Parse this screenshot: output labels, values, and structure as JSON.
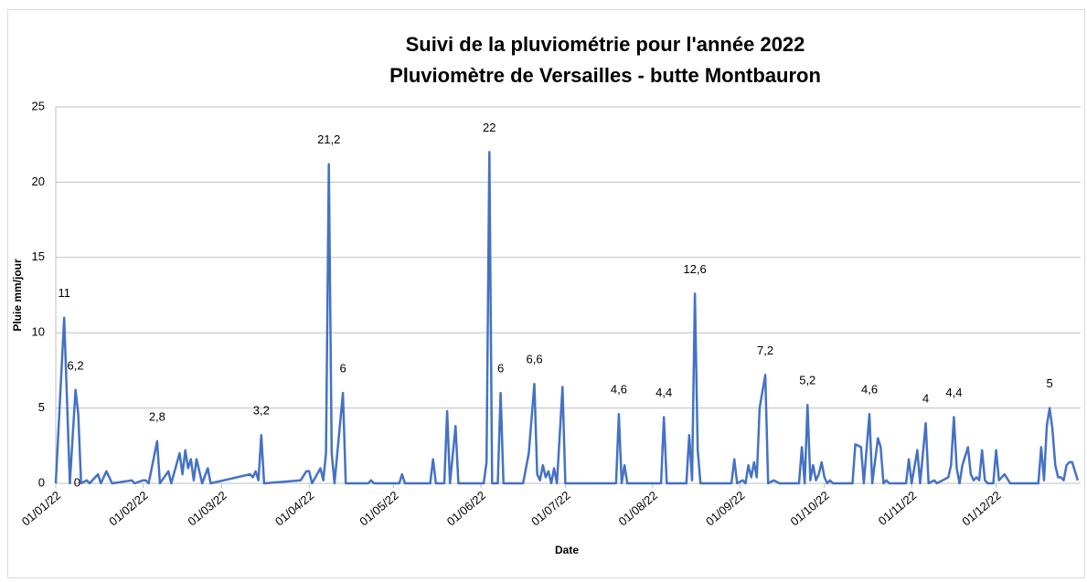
{
  "chart_data": {
    "type": "line",
    "title": [
      "Suivi de la pluviométrie pour l'année 2022",
      "Pluviomètre de Versailles - butte Montbauron"
    ],
    "xlabel": "Date",
    "ylabel": "Pluie mm/jour",
    "x": [
      0,
      3,
      5,
      7,
      8,
      9,
      11,
      12,
      15,
      16,
      18,
      20,
      27,
      28,
      31,
      32,
      33,
      36,
      37,
      40,
      41,
      44,
      45,
      46,
      47,
      48,
      49,
      50,
      52,
      54,
      55,
      69,
      70,
      71,
      72,
      73,
      74,
      87,
      89,
      90,
      91,
      94,
      95,
      96,
      97,
      98,
      99,
      102,
      103,
      111,
      112,
      113,
      122,
      123,
      124,
      133,
      134,
      135,
      138,
      139,
      140,
      142,
      143,
      152,
      153,
      154,
      155,
      157,
      158,
      159,
      166,
      168,
      170,
      171,
      172,
      173,
      174,
      175,
      176,
      177,
      178,
      180,
      181,
      199,
      200,
      201,
      202,
      203,
      215,
      216,
      217,
      224,
      225,
      226,
      227,
      228,
      229,
      240,
      241,
      242,
      244,
      245,
      246,
      247,
      248,
      249,
      250,
      252,
      253,
      255,
      257,
      264,
      265,
      266,
      267,
      268,
      269,
      270,
      271,
      272,
      273,
      274,
      275,
      276,
      283,
      284,
      286,
      287,
      289,
      290,
      292,
      293,
      294,
      295,
      296,
      302,
      303,
      304,
      306,
      307,
      309,
      310,
      312,
      313,
      315,
      317,
      318,
      319,
      320,
      321,
      322,
      324,
      325,
      326,
      327,
      328,
      329,
      330,
      331,
      333,
      334,
      335,
      337,
      339,
      349,
      350,
      351,
      352,
      353,
      354,
      355,
      356,
      357,
      358,
      359,
      360,
      361,
      363
    ],
    "series": [
      {
        "name": "Pluie",
        "color": "#4472c4",
        "values": [
          0,
          11,
          0,
          6.2,
          4.6,
          0,
          0.2,
          0,
          0.6,
          0,
          0.8,
          0,
          0.2,
          0,
          0.2,
          0.2,
          0,
          2.8,
          0,
          0.8,
          0,
          2,
          0.6,
          2.2,
          1,
          1.6,
          0.2,
          1.6,
          0,
          1,
          0,
          0.6,
          0.4,
          0.8,
          0.2,
          3.2,
          0,
          0.2,
          0.8,
          0.8,
          0,
          1,
          0.2,
          2,
          21.2,
          2,
          0,
          6,
          0,
          0,
          0.2,
          0,
          0,
          0.6,
          0,
          0,
          1.6,
          0,
          0,
          4.8,
          0,
          3.8,
          0,
          0,
          1.4,
          22,
          0,
          0,
          6,
          0,
          0,
          2,
          6.6,
          0.6,
          0.2,
          1.2,
          0.4,
          0.8,
          0,
          1,
          0,
          6.4,
          0,
          0,
          4.6,
          0,
          1.2,
          0,
          0,
          4.4,
          0,
          0,
          3.2,
          0.2,
          12.6,
          2.2,
          0,
          0,
          1.6,
          0,
          0.2,
          0,
          1.2,
          0.4,
          1.4,
          0.4,
          5,
          7.2,
          0,
          0.2,
          0,
          0,
          2.4,
          0,
          5.2,
          0.2,
          1.2,
          0.2,
          0.6,
          1.4,
          0.4,
          0,
          0.2,
          0,
          0,
          2.6,
          2.4,
          0,
          4.6,
          0,
          3,
          2.4,
          0,
          0.2,
          0,
          0,
          1.6,
          0,
          2.2,
          0,
          4,
          0,
          0.2,
          0,
          0.2,
          0.4,
          1.2,
          4.4,
          1,
          0,
          1.2,
          2.4,
          0.6,
          0.2,
          0.4,
          0.2,
          2.2,
          0.2,
          0,
          0,
          2.2,
          0.2,
          0.6,
          0,
          0,
          2.4,
          0.2,
          3.8,
          5,
          3.6,
          1.2,
          0.4,
          0.4,
          0.2,
          1.2,
          1.4,
          1.4,
          0.2
        ],
        "value_labels": [
          null,
          "11",
          "0",
          "6,2",
          null,
          null,
          null,
          null,
          null,
          null,
          null,
          null,
          null,
          null,
          null,
          null,
          null,
          "2,8",
          null,
          null,
          null,
          null,
          null,
          null,
          null,
          null,
          null,
          null,
          null,
          null,
          null,
          null,
          null,
          null,
          null,
          "3,2",
          null,
          null,
          null,
          null,
          null,
          null,
          null,
          null,
          "21,2",
          null,
          null,
          "6",
          null,
          null,
          null,
          null,
          null,
          null,
          null,
          null,
          null,
          null,
          null,
          null,
          null,
          null,
          null,
          null,
          null,
          "22",
          null,
          null,
          "6",
          null,
          null,
          null,
          "6,6",
          null,
          null,
          null,
          null,
          null,
          null,
          null,
          null,
          null,
          null,
          null,
          "4,6",
          null,
          null,
          null,
          null,
          "4,4",
          null,
          null,
          null,
          null,
          "12,6",
          null,
          null,
          null,
          null,
          null,
          null,
          null,
          null,
          null,
          null,
          null,
          null,
          "7,2",
          null,
          null,
          null,
          null,
          null,
          null,
          "5,2",
          null,
          null,
          null,
          null,
          null,
          null,
          null,
          null,
          null,
          null,
          null,
          null,
          null,
          "4,6",
          null,
          null,
          null,
          null,
          null,
          null,
          null,
          null,
          null,
          null,
          null,
          "4",
          null,
          null,
          null,
          null,
          null,
          null,
          "4,4",
          null,
          null,
          null,
          null,
          null,
          null,
          null,
          null,
          null,
          null,
          null,
          null,
          null,
          null,
          null,
          null,
          null,
          null,
          null,
          null,
          "5",
          null,
          null,
          null,
          null,
          null,
          null,
          null,
          null,
          null
        ]
      }
    ],
    "xlim": [
      0,
      364
    ],
    "xticks": [
      {
        "value": 0,
        "label": "01/01/22"
      },
      {
        "value": 31,
        "label": "01/02/22"
      },
      {
        "value": 59,
        "label": "01/03/22"
      },
      {
        "value": 90,
        "label": "01/04/22"
      },
      {
        "value": 120,
        "label": "01/05/22"
      },
      {
        "value": 151,
        "label": "01/06/22"
      },
      {
        "value": 181,
        "label": "01/07/22"
      },
      {
        "value": 212,
        "label": "01/08/22"
      },
      {
        "value": 243,
        "label": "01/09/22"
      },
      {
        "value": 273,
        "label": "01/10/22"
      },
      {
        "value": 304,
        "label": "01/11/22"
      },
      {
        "value": 334,
        "label": "01/12/22"
      }
    ],
    "ylim": [
      0,
      25
    ],
    "yticks": [
      0,
      5,
      10,
      15,
      20,
      25
    ],
    "grid": true
  }
}
